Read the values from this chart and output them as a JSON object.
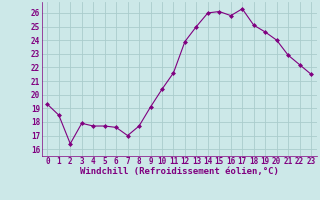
{
  "x": [
    0,
    1,
    2,
    3,
    4,
    5,
    6,
    7,
    8,
    9,
    10,
    11,
    12,
    13,
    14,
    15,
    16,
    17,
    18,
    19,
    20,
    21,
    22,
    23
  ],
  "y": [
    19.3,
    18.5,
    16.4,
    17.9,
    17.7,
    17.7,
    17.6,
    17.0,
    17.7,
    19.1,
    20.4,
    21.6,
    23.9,
    25.0,
    26.0,
    26.1,
    25.8,
    26.3,
    25.1,
    24.6,
    24.0,
    22.9,
    22.2,
    21.5
  ],
  "line_color": "#800080",
  "marker_color": "#800080",
  "bg_color": "#cce8e8",
  "grid_color": "#aacccc",
  "xlabel": "Windchill (Refroidissement éolien,°C)",
  "xlabel_color": "#800080",
  "tick_color": "#800080",
  "ylim": [
    15.5,
    26.8
  ],
  "xlim": [
    -0.5,
    23.5
  ],
  "yticks": [
    16,
    17,
    18,
    19,
    20,
    21,
    22,
    23,
    24,
    25,
    26
  ],
  "xticks": [
    0,
    1,
    2,
    3,
    4,
    5,
    6,
    7,
    8,
    9,
    10,
    11,
    12,
    13,
    14,
    15,
    16,
    17,
    18,
    19,
    20,
    21,
    22,
    23
  ],
  "font_size_ticks": 5.5,
  "font_size_xlabel": 6.5,
  "font_family": "monospace"
}
